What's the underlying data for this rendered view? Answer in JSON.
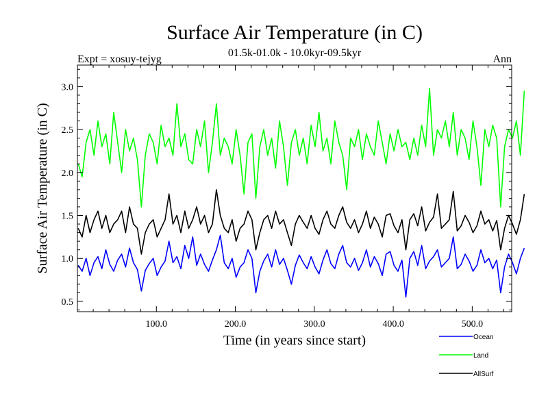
{
  "chart_data": {
    "type": "line",
    "title": "Surface Air Temperature (in C)",
    "subtitle": "01.5k-01.0k - 10.0kyr-09.5kyr",
    "expt_label": "Expt = xosuy-tejyg",
    "period_label": "Ann",
    "xlabel": "Time (in years since start)",
    "ylabel": "Surface Air Temperature (in C)",
    "xlim": [
      0,
      550
    ],
    "ylim": [
      0.38,
      3.25
    ],
    "x_ticks": [
      100,
      200,
      300,
      400,
      500
    ],
    "x_tick_labels": [
      "100.0",
      "200.0",
      "300.0",
      "400.0",
      "500.0"
    ],
    "y_ticks": [
      0.5,
      1.0,
      1.5,
      2.0,
      2.5,
      3.0
    ],
    "y_tick_labels": [
      "0.5",
      "1.0",
      "1.5",
      "2.0",
      "2.5",
      "3.0"
    ],
    "series": [
      {
        "name": "Ocean",
        "color": "#0000ff",
        "x_start": 1,
        "x_step": 5,
        "values": [
          0.92,
          0.85,
          1.0,
          0.8,
          0.95,
          1.02,
          0.88,
          1.1,
          0.93,
          0.85,
          0.98,
          1.05,
          0.9,
          1.12,
          0.95,
          0.87,
          0.62,
          0.86,
          0.94,
          1.0,
          0.8,
          0.9,
          0.97,
          1.2,
          0.95,
          1.02,
          0.88,
          1.15,
          1.0,
          1.25,
          0.92,
          1.05,
          0.93,
          0.85,
          0.98,
          1.1,
          1.27,
          0.95,
          0.88,
          1.0,
          0.78,
          0.9,
          0.95,
          1.1,
          1.0,
          0.6,
          0.85,
          0.97,
          1.05,
          0.9,
          1.1,
          0.93,
          1.0,
          0.86,
          0.7,
          0.92,
          1.04,
          0.95,
          0.88,
          1.02,
          0.9,
          0.82,
          0.98,
          1.1,
          0.94,
          0.88,
          1.05,
          1.15,
          0.95,
          0.9,
          1.0,
          0.86,
          0.95,
          1.1,
          0.9,
          1.02,
          0.94,
          0.8,
          1.05,
          1.08,
          0.92,
          0.85,
          0.98,
          0.55,
          1.0,
          1.08,
          0.92,
          1.15,
          0.88,
          0.97,
          1.02,
          1.1,
          0.9,
          0.95,
          1.0,
          1.25,
          0.88,
          0.93,
          1.05,
          0.97,
          0.85,
          0.92,
          1.1,
          0.95,
          1.0,
          0.88,
          0.98,
          0.6,
          0.9,
          1.05,
          0.95,
          0.82,
          1.0,
          1.12
        ]
      },
      {
        "name": "Land",
        "color": "#00ff00",
        "x_start": 1,
        "x_step": 5,
        "values": [
          2.1,
          1.95,
          2.35,
          2.5,
          2.2,
          2.6,
          2.3,
          2.45,
          2.1,
          2.7,
          2.35,
          2.0,
          2.5,
          2.25,
          2.4,
          2.15,
          1.6,
          2.2,
          2.45,
          2.35,
          2.1,
          2.55,
          2.3,
          2.4,
          2.2,
          2.8,
          2.3,
          2.45,
          2.15,
          2.1,
          2.5,
          2.3,
          2.6,
          2.0,
          2.35,
          2.8,
          2.2,
          2.4,
          2.3,
          2.1,
          2.5,
          2.2,
          1.75,
          2.35,
          2.45,
          1.7,
          2.3,
          2.5,
          2.2,
          2.4,
          2.05,
          2.6,
          2.3,
          1.85,
          2.35,
          2.5,
          2.2,
          2.4,
          2.1,
          2.55,
          2.3,
          2.7,
          2.25,
          2.4,
          2.1,
          2.6,
          2.35,
          2.2,
          1.8,
          2.4,
          2.3,
          2.5,
          2.15,
          2.45,
          2.3,
          2.2,
          2.6,
          2.35,
          2.1,
          2.45,
          2.25,
          2.5,
          2.3,
          2.35,
          2.15,
          2.4,
          2.2,
          2.55,
          2.3,
          2.98,
          2.2,
          2.5,
          2.4,
          2.6,
          2.3,
          2.7,
          2.2,
          2.5,
          2.4,
          2.15,
          2.6,
          2.3,
          1.85,
          2.5,
          2.3,
          2.55,
          2.4,
          1.6,
          2.3,
          2.5,
          2.4,
          2.6,
          2.2,
          2.95
        ]
      },
      {
        "name": "AllSurf",
        "color": "#000000",
        "x_start": 1,
        "x_step": 5,
        "values": [
          1.35,
          1.25,
          1.5,
          1.3,
          1.45,
          1.55,
          1.35,
          1.5,
          1.3,
          1.4,
          1.45,
          1.55,
          1.3,
          1.6,
          1.4,
          1.35,
          1.05,
          1.3,
          1.4,
          1.45,
          1.25,
          1.35,
          1.45,
          1.75,
          1.4,
          1.5,
          1.3,
          1.55,
          1.35,
          1.45,
          1.6,
          1.4,
          1.5,
          1.3,
          1.4,
          1.8,
          1.5,
          1.35,
          1.3,
          1.45,
          1.2,
          1.35,
          1.4,
          1.55,
          1.45,
          1.1,
          1.3,
          1.45,
          1.5,
          1.35,
          1.55,
          1.4,
          1.45,
          1.3,
          1.15,
          1.4,
          1.5,
          1.42,
          1.35,
          1.5,
          1.35,
          1.28,
          1.45,
          1.55,
          1.4,
          1.35,
          1.5,
          1.6,
          1.42,
          1.35,
          1.45,
          1.3,
          1.4,
          1.55,
          1.35,
          1.48,
          1.4,
          1.25,
          1.5,
          1.52,
          1.38,
          1.3,
          1.45,
          1.1,
          1.45,
          1.52,
          1.38,
          1.6,
          1.32,
          1.42,
          1.48,
          1.75,
          1.35,
          1.4,
          1.45,
          1.78,
          1.32,
          1.38,
          1.5,
          1.42,
          1.3,
          1.38,
          1.55,
          1.4,
          1.45,
          1.32,
          1.44,
          1.1,
          1.35,
          1.5,
          1.4,
          1.28,
          1.45,
          1.75
        ]
      }
    ]
  }
}
